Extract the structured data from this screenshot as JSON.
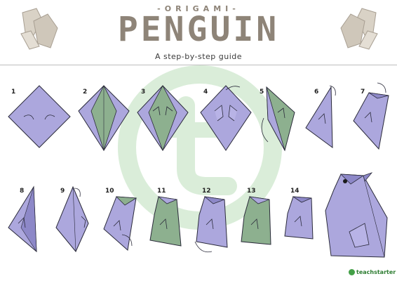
{
  "header": {
    "kicker": "-ORIGAMI-",
    "title": "PENGUIN",
    "subtitle": "A step-by-step guide"
  },
  "steps": [
    {
      "num": "1"
    },
    {
      "num": "2"
    },
    {
      "num": "3"
    },
    {
      "num": "4"
    },
    {
      "num": "5"
    },
    {
      "num": "6"
    },
    {
      "num": "7"
    },
    {
      "num": "8"
    },
    {
      "num": "9"
    },
    {
      "num": "10"
    },
    {
      "num": "11"
    },
    {
      "num": "12"
    },
    {
      "num": "13"
    },
    {
      "num": "14"
    }
  ],
  "brand": {
    "label": "teachstarter"
  },
  "colors": {
    "paper": "#aca7dd",
    "paper_folded": "#8db08f",
    "outline": "#2a2a3a",
    "title": "#8e8478",
    "watermark": "#7cc27a"
  }
}
